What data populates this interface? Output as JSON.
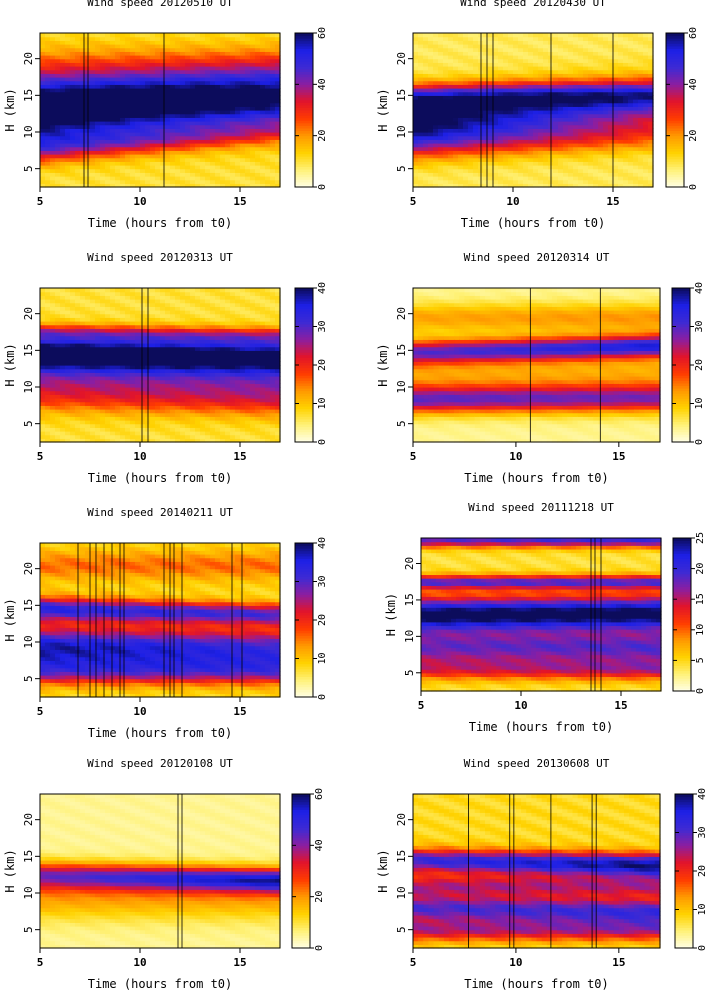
{
  "colorbar_colors": [
    "#ffffe8",
    "#fff27a",
    "#ffd200",
    "#ff9a00",
    "#ff3c00",
    "#e2142a",
    "#8c1ea0",
    "#3d2ad4",
    "#1d20e6",
    "#0c0c5c"
  ],
  "chart_data": [
    {
      "type": "heatmap",
      "title": "Wind speed 20120510 UT",
      "xlabel": "Time (hours from t0)",
      "ylabel": "H (km)",
      "xlim": [
        5,
        17
      ],
      "ylim": [
        2.5,
        23.5
      ],
      "xticks": [
        5,
        10,
        15
      ],
      "yticks": [
        5,
        10,
        15,
        20
      ],
      "colorbar": {
        "range": [
          0,
          60
        ],
        "ticks": [
          0,
          20,
          40,
          60
        ]
      },
      "vertical_lines": [
        7.2,
        7.4,
        11.2
      ],
      "bands": [
        {
          "center": [
            12.3,
            14.0
          ],
          "width": [
            3.6,
            4.2
          ],
          "peak": [
            52,
            28
          ]
        },
        {
          "center": [
            8.0,
            10.0
          ],
          "width": [
            2.2,
            1.5
          ],
          "peak": [
            26,
            10
          ]
        },
        {
          "center": [
            15.5,
            15.0
          ],
          "width": [
            3.0,
            3.5
          ],
          "peak": [
            24,
            24
          ]
        },
        {
          "center": [
            19,
            19
          ],
          "width": [
            3,
            3
          ],
          "peak": [
            12,
            14
          ]
        }
      ],
      "background": 12
    },
    {
      "type": "heatmap",
      "title": "Wind speed 20120430 UT",
      "xlabel": "Time (hours from t0)",
      "ylabel": "H (km)",
      "xlim": [
        5,
        17
      ],
      "ylim": [
        2.5,
        23.5
      ],
      "xticks": [
        5,
        10,
        15
      ],
      "yticks": [
        5,
        10,
        15,
        20
      ],
      "colorbar": {
        "range": [
          0,
          60
        ],
        "ticks": [
          0,
          20,
          40,
          60
        ]
      },
      "vertical_lines": [
        8.4,
        8.7,
        9.0,
        11.9,
        15.0
      ],
      "bands": [
        {
          "center": [
            11.8,
            13.5
          ],
          "width": [
            3.2,
            3.8
          ],
          "peak": [
            52,
            28
          ]
        },
        {
          "center": [
            14.8,
            15.2
          ],
          "width": [
            1.8,
            1.8
          ],
          "peak": [
            28,
            26
          ]
        },
        {
          "center": [
            8.5,
            9.5
          ],
          "width": [
            2.5,
            2.0
          ],
          "peak": [
            20,
            10
          ]
        }
      ],
      "background": 10
    },
    {
      "type": "heatmap",
      "title": "Wind speed 20120313 UT",
      "xlabel": "Time (hours from t0)",
      "ylabel": "H (km)",
      "xlim": [
        5,
        17
      ],
      "ylim": [
        2.5,
        23.5
      ],
      "xticks": [
        5,
        10,
        15
      ],
      "yticks": [
        5,
        10,
        15,
        20
      ],
      "colorbar": {
        "range": [
          0,
          40
        ],
        "ticks": [
          0,
          10,
          20,
          30,
          40
        ]
      },
      "vertical_lines": [
        10.1,
        10.4
      ],
      "bands": [
        {
          "center": [
            14.8,
            14.5
          ],
          "width": [
            1.9,
            2.2
          ],
          "peak": [
            36,
            22
          ]
        },
        {
          "center": [
            12.5,
            12.5
          ],
          "width": [
            2.5,
            3.0
          ],
          "peak": [
            18,
            20
          ]
        },
        {
          "center": [
            9.0,
            8.5
          ],
          "width": [
            2.5,
            2.5
          ],
          "peak": [
            12,
            14
          ]
        },
        {
          "center": [
            17.5,
            17.0
          ],
          "width": [
            1.2,
            1.2
          ],
          "peak": [
            16,
            12
          ]
        }
      ],
      "background": 8
    },
    {
      "type": "heatmap",
      "title": "Wind speed 20120314 UT",
      "xlabel": "Time (hours from t0)",
      "ylabel": "H (km)",
      "xlim": [
        5,
        17
      ],
      "ylim": [
        2.5,
        23.5
      ],
      "xticks": [
        5,
        10,
        15
      ],
      "yticks": [
        5,
        10,
        15,
        20
      ],
      "colorbar": {
        "range": [
          0,
          40
        ],
        "ticks": [
          0,
          10,
          20,
          30,
          40
        ]
      },
      "vertical_lines": [
        10.7,
        14.1
      ],
      "bands": [
        {
          "center": [
            14.8,
            15.7
          ],
          "width": [
            1.6,
            1.5
          ],
          "peak": [
            22,
            30
          ]
        },
        {
          "center": [
            8.3,
            8.5
          ],
          "width": [
            1.8,
            1.8
          ],
          "peak": [
            22,
            20
          ]
        },
        {
          "center": [
            11.5,
            11.5
          ],
          "width": [
            4,
            4
          ],
          "peak": [
            8,
            8
          ]
        },
        {
          "center": [
            19.5,
            19.5
          ],
          "width": [
            2,
            2
          ],
          "peak": [
            9,
            10
          ]
        }
      ],
      "background": 4
    },
    {
      "type": "heatmap",
      "title": "Wind speed 20140211 UT",
      "xlabel": "Time (hours from t0)",
      "ylabel": "H (km)",
      "xlim": [
        5,
        17
      ],
      "ylim": [
        2.5,
        23.5
      ],
      "xticks": [
        5,
        10,
        15
      ],
      "yticks": [
        5,
        10,
        15,
        20
      ],
      "colorbar": {
        "range": [
          0,
          40
        ],
        "ticks": [
          0,
          10,
          20,
          30,
          40
        ]
      },
      "vertical_lines": [
        6.9,
        7.5,
        7.8,
        8.2,
        8.6,
        9.0,
        9.2,
        11.2,
        11.5,
        11.7,
        12.1,
        14.6,
        15.1
      ],
      "bands": [
        {
          "center": [
            9.3,
            9.0
          ],
          "width": [
            2.8,
            2.8
          ],
          "peak": [
            30,
            24
          ]
        },
        {
          "center": [
            14.6,
            13.8
          ],
          "width": [
            1.6,
            1.4
          ],
          "peak": [
            26,
            22
          ]
        },
        {
          "center": [
            6.0,
            6.0
          ],
          "width": [
            1.8,
            1.8
          ],
          "peak": [
            16,
            16
          ]
        },
        {
          "center": [
            20.5,
            20.5
          ],
          "width": [
            2,
            2
          ],
          "peak": [
            8,
            8
          ]
        }
      ],
      "background": 9
    },
    {
      "type": "heatmap",
      "title": "Wind speed 20111218 UT",
      "xlabel": "Time (hours from t0)",
      "ylabel": "H (km)",
      "xlim": [
        5,
        17
      ],
      "ylim": [
        2.5,
        23.5
      ],
      "xticks": [
        5,
        10,
        15
      ],
      "yticks": [
        5,
        10,
        15,
        20
      ],
      "colorbar": {
        "range": [
          0,
          25
        ],
        "ticks": [
          0,
          5,
          10,
          15,
          20,
          25
        ]
      },
      "vertical_lines": [
        13.5,
        13.7,
        14.0
      ],
      "bands": [
        {
          "center": [
            13.0,
            13.2
          ],
          "width": [
            2.4,
            2.4
          ],
          "peak": [
            22,
            22
          ]
        },
        {
          "center": [
            8.5,
            8.5
          ],
          "width": [
            2.2,
            2.2
          ],
          "peak": [
            13,
            14
          ]
        },
        {
          "center": [
            17.5,
            17.5
          ],
          "width": [
            1.0,
            1.0
          ],
          "peak": [
            14,
            14
          ]
        },
        {
          "center": [
            23.3,
            23.3
          ],
          "width": [
            1.0,
            1.0
          ],
          "peak": [
            14,
            16
          ]
        },
        {
          "center": [
            5.5,
            5.5
          ],
          "width": [
            1.5,
            1.5
          ],
          "peak": [
            8,
            10
          ]
        }
      ],
      "background": 5
    },
    {
      "type": "heatmap",
      "title": "Wind speed 20120108 UT",
      "xlabel": "Time (hours from t0)",
      "ylabel": "H (km)",
      "xlim": [
        5,
        17
      ],
      "ylim": [
        2.5,
        23.5
      ],
      "xticks": [
        5,
        10,
        15
      ],
      "yticks": [
        5,
        10,
        15,
        20
      ],
      "colorbar": {
        "range": [
          0,
          60
        ],
        "ticks": [
          0,
          20,
          40,
          60
        ]
      },
      "vertical_lines": [
        11.9,
        12.1
      ],
      "bands": [
        {
          "center": [
            12.5,
            11.8
          ],
          "width": [
            1.8,
            1.6
          ],
          "peak": [
            32,
            46
          ]
        },
        {
          "center": [
            9.5,
            9.5
          ],
          "width": [
            3,
            3
          ],
          "peak": [
            14,
            14
          ]
        }
      ],
      "background": 6
    },
    {
      "type": "heatmap",
      "title": "Wind speed 20130608 UT",
      "xlabel": "Time (hours from t0)",
      "ylabel": "H (km)",
      "xlim": [
        5,
        17
      ],
      "ylim": [
        2.5,
        23.5
      ],
      "xticks": [
        5,
        10,
        15
      ],
      "yticks": [
        5,
        10,
        15,
        20
      ],
      "colorbar": {
        "range": [
          0,
          40
        ],
        "ticks": [
          0,
          10,
          20,
          30,
          40
        ]
      },
      "vertical_lines": [
        7.7,
        9.7,
        9.9,
        11.7,
        13.7,
        13.9
      ],
      "bands": [
        {
          "center": [
            14.5,
            13.8
          ],
          "width": [
            1.6,
            1.6
          ],
          "peak": [
            24,
            32
          ]
        },
        {
          "center": [
            8.0,
            7.5
          ],
          "width": [
            1.8,
            1.8
          ],
          "peak": [
            22,
            24
          ]
        },
        {
          "center": [
            11.0,
            11.0
          ],
          "width": [
            1.5,
            1.5
          ],
          "peak": [
            16,
            16
          ]
        },
        {
          "center": [
            5.0,
            5.0
          ],
          "width": [
            1.5,
            1.5
          ],
          "peak": [
            16,
            16
          ]
        }
      ],
      "background": 9
    }
  ]
}
